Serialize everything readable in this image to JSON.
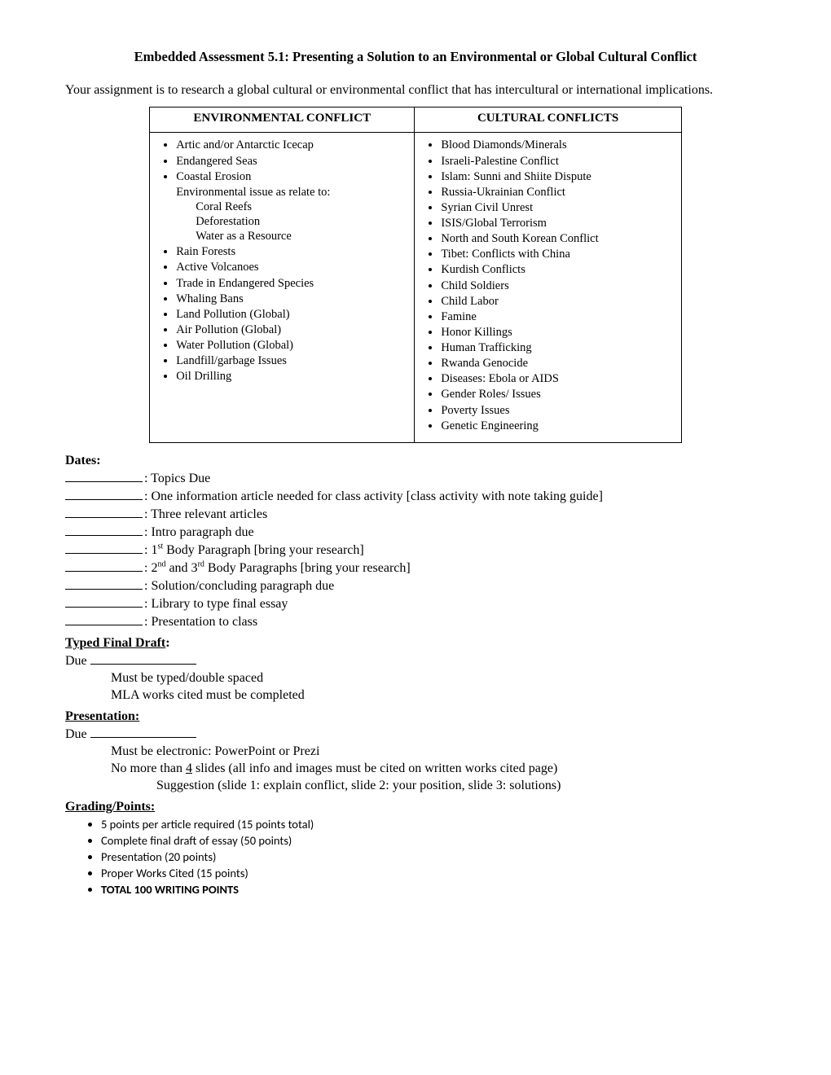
{
  "title": "Embedded Assessment 5.1: Presenting a Solution to an Environmental or Global Cultural Conflict",
  "intro": "Your assignment is to research a global cultural or environmental conflict that has intercultural or international implications.",
  "table": {
    "headers": {
      "left": "ENVIRONMENTAL CONFLICT",
      "right": "CULTURAL CONFLICTS"
    },
    "env": {
      "items_a": [
        "Artic and/or Antarctic Icecap",
        "Endangered Seas",
        "Coastal Erosion"
      ],
      "env_relate_label": "Environmental issue as relate to:",
      "env_relate_items": [
        "Coral Reefs",
        "Deforestation",
        "Water as a Resource"
      ],
      "items_b": [
        "Rain Forests",
        "Active Volcanoes",
        "Trade in Endangered Species",
        "Whaling Bans",
        "Land Pollution (Global)",
        "Air Pollution (Global)",
        "Water Pollution (Global)",
        "Landfill/garbage Issues",
        "Oil Drilling"
      ]
    },
    "cultural": [
      "Blood Diamonds/Minerals",
      "Israeli-Palestine Conflict",
      "Islam:  Sunni and Shiite Dispute",
      "Russia-Ukrainian Conflict",
      "Syrian Civil Unrest",
      "ISIS/Global Terrorism",
      "North and South Korean Conflict",
      "Tibet: Conflicts with China",
      "Kurdish Conflicts",
      "Child Soldiers",
      "Child Labor",
      "Famine",
      "Honor Killings",
      "Human Trafficking",
      "Rwanda Genocide",
      "Diseases: Ebola or AIDS",
      "Gender Roles/ Issues",
      "Poverty Issues",
      "Genetic Engineering"
    ]
  },
  "dates": {
    "heading": "Dates:",
    "items": {
      "d1": ": Topics Due",
      "d2": ": One information article needed for class activity [class activity with note taking guide]",
      "d3": ": Three relevant articles",
      "d4": ": Intro paragraph due",
      "d5_pre": ": 1",
      "d5_sup": "st",
      "d5_post": " Body Paragraph [bring your research]",
      "d6_pre": ": 2",
      "d6_sup1": "nd",
      "d6_mid": " and 3",
      "d6_sup2": "rd",
      "d6_post": " Body Paragraphs [bring your research]",
      "d7": ": Solution/concluding paragraph due",
      "d8": ": Library to type final essay",
      "d9": ": Presentation to class"
    }
  },
  "final_draft": {
    "heading": "Typed Final Draft",
    "due_label": "Due ",
    "lines": [
      "Must be typed/double spaced",
      "MLA works cited must be completed"
    ]
  },
  "presentation": {
    "heading": "Presentation:",
    "due_label": "Due ",
    "line1": "Must be electronic: PowerPoint or Prezi",
    "line2_pre": "No more than ",
    "line2_underlined": "4",
    "line2_post": " slides (all info and images must be cited on written works cited page)",
    "line3": "Suggestion (slide 1: explain conflict, slide 2: your position, slide 3: solutions)"
  },
  "grading": {
    "heading": "Grading/Points:",
    "items": [
      "5 points per article required (15 points total)",
      "Complete final draft of essay (50 points)",
      "Presentation (20 points)",
      "Proper Works Cited (15 points)"
    ],
    "total": "TOTAL 100 WRITING POINTS"
  }
}
